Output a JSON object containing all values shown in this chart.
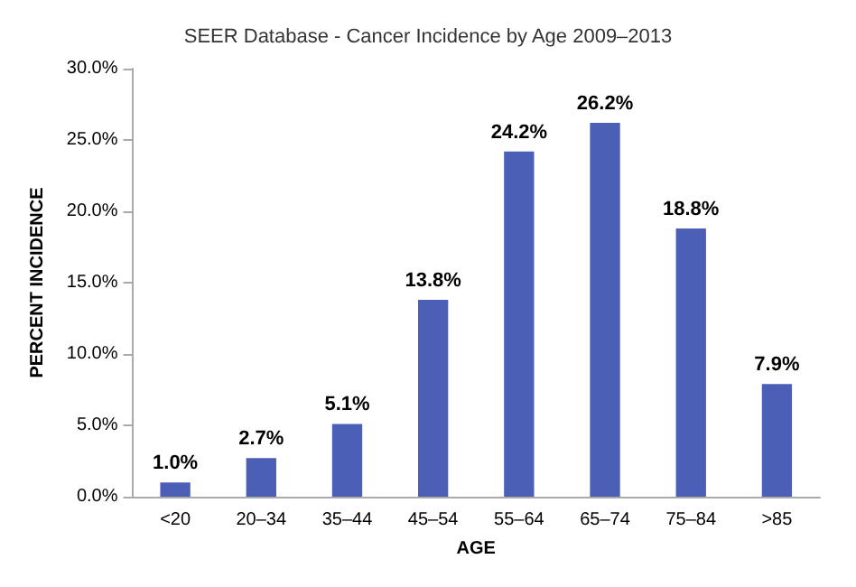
{
  "chart_data": {
    "type": "bar",
    "title": "SEER Database - Cancer Incidence by Age 2009–2013",
    "xlabel": "AGE",
    "ylabel": "PERCENT INCIDENCE",
    "categories": [
      "<20",
      "20–34",
      "35–44",
      "45–54",
      "55–64",
      "65–74",
      "75–84",
      ">85"
    ],
    "values": [
      1.0,
      2.7,
      5.1,
      13.8,
      24.2,
      26.2,
      18.8,
      7.9
    ],
    "value_labels": [
      "1.0%",
      "2.7%",
      "5.1%",
      "13.8%",
      "24.2%",
      "26.2%",
      "18.8%",
      "7.9%"
    ],
    "color": "#4a5fb5",
    "ylim": [
      0,
      30
    ],
    "yticks": [
      {
        "value": 0,
        "label": "0.0%"
      },
      {
        "value": 5,
        "label": "5.0%"
      },
      {
        "value": 10,
        "label": "10.0%"
      },
      {
        "value": 15,
        "label": "15.0%"
      },
      {
        "value": 20,
        "label": "20.0%"
      },
      {
        "value": 25,
        "label": "25.0%"
      },
      {
        "value": 30,
        "label": "30.0%"
      }
    ],
    "grid": false
  }
}
